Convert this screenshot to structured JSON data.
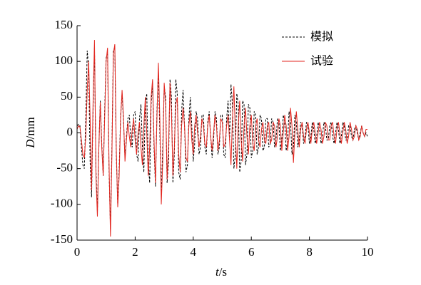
{
  "chart_data": {
    "type": "line",
    "xlabel": "t/s",
    "ylabel": "D/mm",
    "xlim": [
      0,
      10
    ],
    "xticks": [
      0,
      2,
      4,
      6,
      8,
      10
    ],
    "ylim": [
      -150,
      150
    ],
    "yticks": [
      -150,
      -100,
      -50,
      0,
      50,
      100,
      150
    ],
    "legend": "upper right",
    "grid": false,
    "x": [
      0,
      0.05,
      0.1,
      0.15,
      0.2,
      0.25,
      0.3,
      0.35,
      0.4,
      0.45,
      0.5,
      0.55,
      0.6,
      0.65,
      0.7,
      0.75,
      0.8,
      0.85,
      0.9,
      0.95,
      1,
      1.05,
      1.1,
      1.15,
      1.2,
      1.25,
      1.3,
      1.35,
      1.4,
      1.45,
      1.5,
      1.55,
      1.6,
      1.65,
      1.7,
      1.75,
      1.8,
      1.85,
      1.9,
      1.95,
      2,
      2.05,
      2.1,
      2.15,
      2.2,
      2.25,
      2.3,
      2.35,
      2.4,
      2.45,
      2.5,
      2.55,
      2.6,
      2.65,
      2.7,
      2.75,
      2.8,
      2.85,
      2.9,
      2.95,
      3,
      3.05,
      3.1,
      3.15,
      3.2,
      3.25,
      3.3,
      3.35,
      3.4,
      3.45,
      3.5,
      3.55,
      3.6,
      3.65,
      3.7,
      3.75,
      3.8,
      3.85,
      3.9,
      3.95,
      4,
      4.05,
      4.1,
      4.15,
      4.2,
      4.25,
      4.3,
      4.35,
      4.4,
      4.45,
      4.5,
      4.55,
      4.6,
      4.65,
      4.7,
      4.75,
      4.8,
      4.85,
      4.9,
      4.95,
      5,
      5.05,
      5.1,
      5.15,
      5.2,
      5.25,
      5.3,
      5.35,
      5.4,
      5.45,
      5.5,
      5.55,
      5.6,
      5.65,
      5.7,
      5.75,
      5.8,
      5.85,
      5.9,
      5.95,
      6,
      6.05,
      6.1,
      6.15,
      6.2,
      6.25,
      6.3,
      6.35,
      6.4,
      6.45,
      6.5,
      6.55,
      6.6,
      6.65,
      6.7,
      6.75,
      6.8,
      6.85,
      6.9,
      6.95,
      7,
      7.05,
      7.1,
      7.15,
      7.2,
      7.25,
      7.3,
      7.35,
      7.4,
      7.45,
      7.5,
      7.55,
      7.6,
      7.65,
      7.7,
      7.75,
      7.8,
      7.85,
      7.9,
      7.95,
      8,
      8.05,
      8.1,
      8.15,
      8.2,
      8.25,
      8.3,
      8.35,
      8.4,
      8.45,
      8.5,
      8.55,
      8.6,
      8.65,
      8.7,
      8.75,
      8.8,
      8.85,
      8.9,
      8.95,
      9,
      9.05,
      9.1,
      9.15,
      9.2,
      9.25,
      9.3,
      9.35,
      9.4,
      9.45,
      9.5,
      9.55,
      9.6,
      9.65,
      9.7,
      9.75,
      9.8,
      9.85,
      9.9,
      9.95,
      10
    ],
    "series": [
      {
        "name": "模拟",
        "color": "#000000",
        "dash": true,
        "values": [
          10,
          12,
          10,
          -20,
          -45,
          -50,
          20,
          115,
          90,
          -40,
          -90,
          30,
          120,
          -50,
          -110,
          -20,
          45,
          -15,
          -60,
          30,
          105,
          110,
          -50,
          -135,
          -20,
          115,
          120,
          -30,
          -100,
          -50,
          25,
          55,
          15,
          -35,
          -5,
          20,
          25,
          -10,
          -20,
          25,
          30,
          -30,
          -40,
          20,
          40,
          -20,
          -55,
          40,
          55,
          -40,
          -70,
          40,
          70,
          -20,
          -75,
          30,
          85,
          0,
          -85,
          -20,
          65,
          50,
          -70,
          -40,
          75,
          50,
          -70,
          -30,
          75,
          55,
          -55,
          -65,
          30,
          60,
          10,
          -55,
          -45,
          20,
          50,
          10,
          -40,
          -15,
          30,
          20,
          -30,
          -20,
          25,
          25,
          -20,
          -30,
          15,
          30,
          -5,
          -35,
          -10,
          30,
          20,
          -30,
          -20,
          25,
          25,
          -30,
          -35,
          20,
          45,
          -10,
          68,
          40,
          -50,
          -30,
          55,
          40,
          -55,
          -40,
          45,
          40,
          -45,
          -30,
          40,
          35,
          -35,
          -25,
          30,
          25,
          -30,
          -20,
          25,
          20,
          -25,
          -20,
          20,
          20,
          -20,
          -15,
          20,
          15,
          -20,
          -10,
          20,
          15,
          -25,
          -10,
          25,
          15,
          -25,
          -10,
          30,
          15,
          -30,
          -20,
          25,
          15,
          -20,
          -10,
          15,
          10,
          -15,
          -5,
          15,
          10,
          -15,
          -5,
          15,
          5,
          -15,
          -5,
          15,
          5,
          -15,
          -5,
          15,
          10,
          -10,
          -10,
          10,
          15,
          -5,
          -15,
          0,
          15,
          5,
          -15,
          -5,
          15,
          10,
          -10,
          -10,
          10,
          10,
          -5,
          -10,
          5,
          10,
          0,
          -10,
          0,
          10,
          0,
          -5,
          0,
          -5
        ]
      },
      {
        "name": "试验",
        "color": "#e3261f",
        "dash": false,
        "values": [
          5,
          10,
          8,
          -10,
          -30,
          -35,
          -5,
          60,
          100,
          20,
          -80,
          40,
          130,
          -60,
          -117,
          -20,
          43,
          -20,
          -60,
          20,
          100,
          119,
          -40,
          -145,
          -30,
          110,
          124,
          -20,
          -104,
          -60,
          20,
          60,
          20,
          -40,
          -10,
          15,
          -5,
          -20,
          5,
          20,
          -10,
          -30,
          0,
          15,
          -20,
          -45,
          10,
          50,
          0,
          -60,
          -20,
          50,
          75,
          -10,
          -70,
          20,
          98,
          20,
          -100,
          -40,
          70,
          40,
          -65,
          -20,
          70,
          30,
          -60,
          -20,
          40,
          50,
          -30,
          -55,
          10,
          35,
          10,
          -35,
          -40,
          10,
          30,
          -10,
          -30,
          10,
          25,
          0,
          -20,
          -5,
          20,
          10,
          -15,
          -20,
          10,
          25,
          -5,
          -25,
          0,
          25,
          10,
          -25,
          -10,
          20,
          15,
          -20,
          -15,
          10,
          25,
          -10,
          -45,
          20,
          65,
          0,
          -50,
          10,
          45,
          -10,
          -40,
          10,
          35,
          -5,
          -30,
          10,
          25,
          -15,
          -25,
          10,
          20,
          -10,
          -20,
          5,
          15,
          -10,
          -15,
          10,
          15,
          -15,
          -10,
          15,
          10,
          -20,
          -5,
          20,
          10,
          -25,
          0,
          25,
          10,
          -25,
          -5,
          35,
          10,
          -42,
          0,
          30,
          5,
          -20,
          5,
          15,
          -5,
          -15,
          5,
          15,
          0,
          -15,
          5,
          15,
          0,
          -15,
          0,
          15,
          5,
          -15,
          -5,
          15,
          10,
          -10,
          -10,
          10,
          15,
          -5,
          -15,
          5,
          15,
          0,
          -15,
          0,
          15,
          5,
          -15,
          -5,
          15,
          5,
          -10,
          -5,
          10,
          5,
          -10,
          -5,
          10,
          0,
          -5,
          5,
          5
        ]
      }
    ]
  }
}
